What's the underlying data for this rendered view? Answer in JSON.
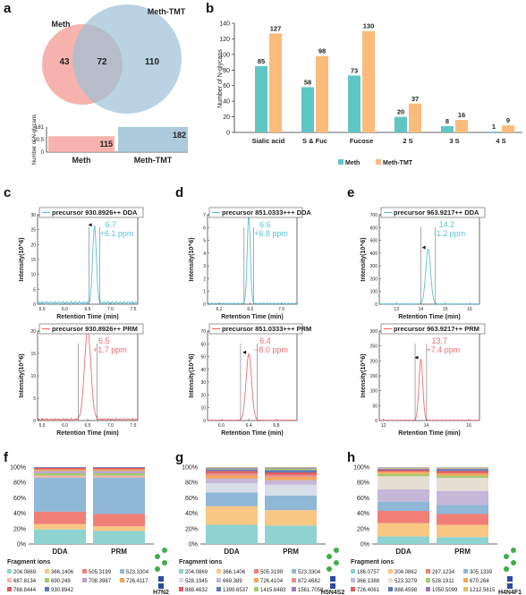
{
  "colors": {
    "meth": "#f4a6a0",
    "meth_tmt": "#9dc1d6",
    "bar_meth": "#60c6c4",
    "bar_meth_tmt": "#fbbb7b",
    "dda": "#5bc0d8",
    "prm": "#ee6e73"
  },
  "panel_letters": [
    "a",
    "b",
    "c",
    "d",
    "e",
    "f",
    "g",
    "h"
  ],
  "chart_data": [
    {
      "panel": "a",
      "type": "venn",
      "sets": [
        "Meth",
        "Meth-TMT"
      ],
      "only_meth": 43,
      "overlap": 72,
      "only_meth_tmt": 110,
      "bar": {
        "type": "bar",
        "categories": [
          "Meth",
          "Meth-TMT"
        ],
        "values": [
          115,
          182
        ],
        "yticks": [
          "0",
          "90.5",
          "181"
        ],
        "ylabel": "Number of N-glycans",
        "ylim": [
          0,
          181
        ]
      }
    },
    {
      "panel": "b",
      "type": "bar",
      "categories": [
        "Sialic acid",
        "S & Fuc",
        "Fucose",
        "2 S",
        "3 S",
        "4 S"
      ],
      "series": [
        {
          "name": "Meth",
          "values": [
            85,
            58,
            73,
            20,
            8,
            1
          ]
        },
        {
          "name": "Meth-TMT",
          "values": [
            127,
            98,
            130,
            37,
            16,
            9
          ]
        }
      ],
      "ylabel": "Number of N-glycans",
      "ylim": [
        0,
        140
      ],
      "yticks": [
        0,
        20,
        40,
        60,
        80,
        100,
        120,
        140
      ],
      "legend": "bottom"
    },
    {
      "panel": "c",
      "type": "line",
      "xlabel": "Retention Time (min)",
      "ylabel": "Intensity(10^6)",
      "plots": [
        {
          "legend": "precursor 930.8926++ DDA",
          "rt": "6.7",
          "ppm": "+6.1 ppm",
          "xlim": [
            5.4,
            7.6
          ],
          "ylim": [
            0,
            30
          ],
          "xticks": [
            "5.5",
            "6.0",
            "6.5",
            "7.0",
            "7.5"
          ],
          "yticks": [
            "0",
            "5",
            "10",
            "15",
            "20",
            "25",
            "30"
          ],
          "peak_x": 6.65,
          "peak_y": 26,
          "sigma": 0.04,
          "noise": 1.0
        },
        {
          "legend": "precursor 930.8926++ PRM",
          "rt": "6.5",
          "ppm": "+1.7 ppm",
          "xlim": [
            5.4,
            7.6
          ],
          "ylim": [
            0,
            20
          ],
          "xticks": [
            "5.5",
            "6.0",
            "6.5",
            "7.0",
            "7.5"
          ],
          "yticks": [
            "0",
            "5",
            "10",
            "15",
            "20"
          ],
          "peak_x": 6.5,
          "peak_y": 20,
          "sigma": 0.07,
          "noise": 0.5
        }
      ]
    },
    {
      "panel": "d",
      "type": "line",
      "xlabel": "Retention Time (min)",
      "ylabel": "Intensity(10^6)",
      "plots": [
        {
          "legend": "precursor 851.0333+++ DDA",
          "rt": "6.6",
          "ppm": "+6.8 ppm",
          "xlim": [
            6.05,
            7.2
          ],
          "ylim": [
            0,
            7
          ],
          "xticks": [
            "6.2",
            "6.6",
            "7.0"
          ],
          "yticks": [
            "0",
            "1",
            "2",
            "3",
            "4",
            "5",
            "6",
            "7"
          ],
          "peak_x": 6.58,
          "peak_y": 7,
          "sigma": 0.02,
          "noise": 0.1
        },
        {
          "legend": "precursor 851.0333+++ PRM",
          "rt": "6.4",
          "ppm": "−8.0 ppm",
          "xlim": [
            5.8,
            7.1
          ],
          "ylim": [
            0,
            70
          ],
          "xticks": [
            "6.0",
            "6.4",
            "6.8"
          ],
          "yticks": [
            "0",
            "10",
            "20",
            "30",
            "40",
            "50",
            "60",
            "70"
          ],
          "peak_x": 6.4,
          "peak_y": 52,
          "sigma": 0.04,
          "noise": 0.5
        }
      ]
    },
    {
      "panel": "e",
      "type": "line",
      "xlabel": "Retention Time (min)",
      "ylabel": "Intensity(10^6)",
      "plots": [
        {
          "legend": "precursor 963.9217++ DDA",
          "rt": "14.2",
          "ppm": "-1.2 ppm",
          "xlim": [
            12.3,
            16.4
          ],
          "ylim": [
            0,
            700
          ],
          "xticks": [
            "13",
            "14",
            "15",
            "16"
          ],
          "yticks": [
            "0",
            "100",
            "200",
            "300",
            "400",
            "500",
            "600",
            "700"
          ],
          "peak_x": 14.3,
          "peak_y": 430,
          "sigma": 0.1,
          "noise": 5
        },
        {
          "legend": "precursor 963.9217++ PRM",
          "rt": "13.7",
          "ppm": "+7.4 ppm",
          "xlim": [
            11.8,
            16.5
          ],
          "ylim": [
            0,
            300
          ],
          "xticks": [
            "12",
            "14",
            "16"
          ],
          "yticks": [
            "0",
            "50",
            "100",
            "150",
            "200",
            "250",
            "300"
          ],
          "peak_x": 13.75,
          "peak_y": 205,
          "sigma": 0.09,
          "noise": 2
        }
      ]
    },
    {
      "panel": "f",
      "type": "stacked-bar",
      "categories": [
        "DDA",
        "PRM"
      ],
      "yticks": [
        "0%",
        "20%",
        "40%",
        "60%",
        "80%",
        "100%"
      ],
      "legend_title": "Fragment ions",
      "glycan": "H7N2",
      "series": [
        {
          "name": "204.0869",
          "color": "#8ed3cf",
          "values": [
            19,
            17
          ]
        },
        {
          "name": "366.1406",
          "color": "#f9c784",
          "values": [
            7,
            6
          ]
        },
        {
          "name": "505.3199",
          "color": "#f07f77",
          "values": [
            16,
            16
          ]
        },
        {
          "name": "523.3304",
          "color": "#8fb7d6",
          "values": [
            44,
            47
          ]
        },
        {
          "name": "687.8134",
          "color": "#f4b6b0",
          "values": [
            3,
            3
          ]
        },
        {
          "name": "690.249",
          "color": "#a6c86f",
          "values": [
            3,
            3
          ]
        },
        {
          "name": "708.3987",
          "color": "#b9a3c9",
          "values": [
            3,
            3
          ]
        },
        {
          "name": "726.4117",
          "color": "#f2a65a",
          "values": [
            2,
            2
          ]
        },
        {
          "name": "768.8444",
          "color": "#e15b5b",
          "values": [
            2,
            2
          ]
        },
        {
          "name": "930.8942",
          "color": "#5e79b8",
          "values": [
            1,
            1
          ]
        }
      ]
    },
    {
      "panel": "g",
      "type": "stacked-bar",
      "categories": [
        "DDA",
        "PRM"
      ],
      "yticks": [
        "0%",
        "20%",
        "40%",
        "60%",
        "80%",
        "100%"
      ],
      "legend_title": "Fragment ions",
      "glycan": "H5N4S2",
      "series": [
        {
          "name": "204.0869",
          "color": "#8ed3cf",
          "values": [
            25,
            24
          ]
        },
        {
          "name": "366.1406",
          "color": "#f9c784",
          "values": [
            24,
            20
          ]
        },
        {
          "name": "505.3199",
          "color": "#f07f77",
          "values": [
            0,
            0
          ]
        },
        {
          "name": "523.3304",
          "color": "#8fb7d6",
          "values": [
            18,
            19
          ]
        },
        {
          "name": "528.1945",
          "color": "#d8dde8",
          "values": [
            12,
            14
          ]
        },
        {
          "name": "669.389",
          "color": "#c4b7d8",
          "values": [
            6,
            6
          ]
        },
        {
          "name": "726.4104",
          "color": "#f2a65a",
          "values": [
            4,
            4
          ]
        },
        {
          "name": "872.4682",
          "color": "#e88f8f",
          "values": [
            3,
            3
          ]
        },
        {
          "name": "888.4632",
          "color": "#e15b5b",
          "values": [
            3,
            3
          ]
        },
        {
          "name": "1399.6537",
          "color": "#5e79b8",
          "values": [
            2,
            3
          ]
        },
        {
          "name": "1415.6483",
          "color": "#a6c86f",
          "values": [
            1,
            2
          ]
        },
        {
          "name": "1561.7058",
          "color": "#9b7bb5",
          "values": [
            1,
            1
          ]
        },
        {
          "name": "1577.7018",
          "color": "#c6a98b",
          "values": [
            1,
            1
          ]
        }
      ]
    },
    {
      "panel": "h",
      "type": "stacked-bar",
      "categories": [
        "DDA",
        "PRM"
      ],
      "yticks": [
        "0%",
        "20%",
        "40%",
        "60%",
        "80%",
        "100%"
      ],
      "legend_title": "Fragment ions",
      "glycan": "H4N4F1",
      "series": [
        {
          "name": "186.0757",
          "color": "#8ed3cf",
          "values": [
            10,
            9
          ]
        },
        {
          "name": "204.0862",
          "color": "#f9c784",
          "values": [
            17,
            16
          ]
        },
        {
          "name": "287.1234",
          "color": "#f07f77",
          "values": [
            16,
            14
          ]
        },
        {
          "name": "305.1339",
          "color": "#8fb7d6",
          "values": [
            12,
            12
          ]
        },
        {
          "name": "366.1388",
          "color": "#c4b7d8",
          "values": [
            16,
            18
          ]
        },
        {
          "name": "523.3279",
          "color": "#e6ddd3",
          "values": [
            17,
            17
          ]
        },
        {
          "name": "528.1911",
          "color": "#a6c86f",
          "values": [
            3,
            3
          ]
        },
        {
          "name": "670.264",
          "color": "#f2a65a",
          "values": [
            3,
            3
          ]
        },
        {
          "name": "726.4061",
          "color": "#e15b5b",
          "values": [
            2,
            3
          ]
        },
        {
          "name": "888.4598",
          "color": "#5e79b8",
          "values": [
            1,
            2
          ]
        },
        {
          "name": "1050.5099",
          "color": "#9b7bb5",
          "values": [
            1,
            1
          ]
        },
        {
          "name": "1212.5615",
          "color": "#d9c36a",
          "values": [
            1,
            1
          ]
        },
        {
          "name": "1415.6428",
          "color": "#c6a98b",
          "values": [
            0.5,
            0.5
          ]
        },
        {
          "name": "1577.6957",
          "color": "#8fb7d6",
          "values": [
            0.5,
            0.5
          ]
        }
      ]
    }
  ]
}
